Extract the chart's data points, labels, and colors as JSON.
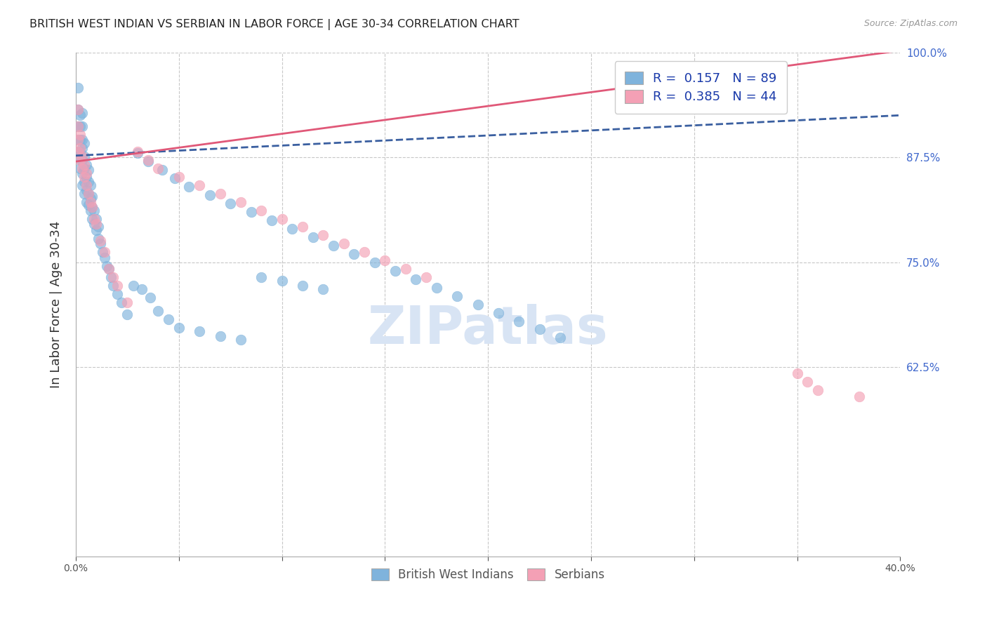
{
  "title": "BRITISH WEST INDIAN VS SERBIAN IN LABOR FORCE | AGE 30-34 CORRELATION CHART",
  "source": "Source: ZipAtlas.com",
  "ylabel": "In Labor Force | Age 30-34",
  "xlim": [
    0.0,
    0.4
  ],
  "ylim": [
    0.4,
    1.0
  ],
  "blue_color": "#7FB3DC",
  "pink_color": "#F4A0B5",
  "blue_line_color": "#3A5FA0",
  "pink_line_color": "#E05878",
  "watermark_color": "#D8E4F4",
  "R_blue": 0.157,
  "N_blue": 89,
  "R_pink": 0.385,
  "N_pink": 44,
  "blue_x": [
    0.001,
    0.001,
    0.001,
    0.001,
    0.001,
    0.002,
    0.002,
    0.002,
    0.002,
    0.002,
    0.002,
    0.003,
    0.003,
    0.003,
    0.003,
    0.003,
    0.003,
    0.003,
    0.004,
    0.004,
    0.004,
    0.004,
    0.004,
    0.005,
    0.005,
    0.005,
    0.005,
    0.006,
    0.006,
    0.006,
    0.006,
    0.007,
    0.007,
    0.007,
    0.008,
    0.008,
    0.008,
    0.009,
    0.009,
    0.01,
    0.01,
    0.011,
    0.011,
    0.012,
    0.013,
    0.014,
    0.015,
    0.016,
    0.017,
    0.018,
    0.02,
    0.022,
    0.025,
    0.028,
    0.032,
    0.036,
    0.04,
    0.045,
    0.05,
    0.06,
    0.07,
    0.08,
    0.09,
    0.1,
    0.11,
    0.12,
    0.03,
    0.035,
    0.042,
    0.048,
    0.055,
    0.065,
    0.075,
    0.085,
    0.095,
    0.105,
    0.115,
    0.125,
    0.135,
    0.145,
    0.155,
    0.165,
    0.175,
    0.185,
    0.195,
    0.205,
    0.215,
    0.225,
    0.235
  ],
  "blue_y": [
    0.882,
    0.896,
    0.912,
    0.932,
    0.958,
    0.862,
    0.872,
    0.882,
    0.896,
    0.912,
    0.925,
    0.842,
    0.856,
    0.872,
    0.886,
    0.896,
    0.912,
    0.928,
    0.832,
    0.846,
    0.862,
    0.876,
    0.892,
    0.822,
    0.836,
    0.852,
    0.866,
    0.818,
    0.832,
    0.846,
    0.86,
    0.812,
    0.826,
    0.842,
    0.802,
    0.816,
    0.828,
    0.796,
    0.812,
    0.788,
    0.802,
    0.778,
    0.792,
    0.772,
    0.762,
    0.756,
    0.746,
    0.742,
    0.732,
    0.722,
    0.712,
    0.702,
    0.688,
    0.722,
    0.718,
    0.708,
    0.692,
    0.682,
    0.672,
    0.668,
    0.662,
    0.658,
    0.732,
    0.728,
    0.722,
    0.718,
    0.88,
    0.87,
    0.86,
    0.85,
    0.84,
    0.83,
    0.82,
    0.81,
    0.8,
    0.79,
    0.78,
    0.77,
    0.76,
    0.75,
    0.74,
    0.73,
    0.72,
    0.71,
    0.7,
    0.69,
    0.68,
    0.67,
    0.66
  ],
  "pink_x": [
    0.001,
    0.001,
    0.001,
    0.001,
    0.002,
    0.002,
    0.002,
    0.003,
    0.003,
    0.004,
    0.004,
    0.005,
    0.005,
    0.006,
    0.007,
    0.008,
    0.009,
    0.01,
    0.012,
    0.014,
    0.016,
    0.018,
    0.02,
    0.025,
    0.03,
    0.035,
    0.04,
    0.05,
    0.06,
    0.07,
    0.08,
    0.09,
    0.1,
    0.11,
    0.12,
    0.13,
    0.14,
    0.15,
    0.16,
    0.17,
    0.35,
    0.355,
    0.36,
    0.38
  ],
  "pink_y": [
    0.882,
    0.896,
    0.912,
    0.932,
    0.872,
    0.886,
    0.902,
    0.862,
    0.876,
    0.852,
    0.866,
    0.842,
    0.856,
    0.832,
    0.822,
    0.816,
    0.802,
    0.796,
    0.776,
    0.762,
    0.742,
    0.732,
    0.722,
    0.702,
    0.882,
    0.872,
    0.862,
    0.852,
    0.842,
    0.832,
    0.822,
    0.812,
    0.802,
    0.792,
    0.782,
    0.772,
    0.762,
    0.752,
    0.742,
    0.732,
    0.618,
    0.608,
    0.598,
    0.59
  ],
  "blue_trendline_x": [
    0.0,
    0.4
  ],
  "blue_trendline_y": [
    0.877,
    0.925
  ],
  "pink_trendline_x": [
    0.0,
    0.4
  ],
  "pink_trendline_y": [
    0.87,
    1.002
  ],
  "ytick_positions": [
    0.625,
    0.75,
    0.875,
    1.0
  ],
  "ytick_labels_right": [
    "62.5%",
    "75.0%",
    "87.5%",
    "100.0%"
  ],
  "xtick_positions": [
    0.0,
    0.05,
    0.1,
    0.15,
    0.2,
    0.25,
    0.3,
    0.35,
    0.4
  ],
  "xtick_labels": [
    "0.0%",
    "",
    "",
    "",
    "",
    "",
    "",
    "",
    "40.0%"
  ],
  "grid_xtick_positions": [
    0.05,
    0.1,
    0.15,
    0.2,
    0.25,
    0.3,
    0.35
  ]
}
